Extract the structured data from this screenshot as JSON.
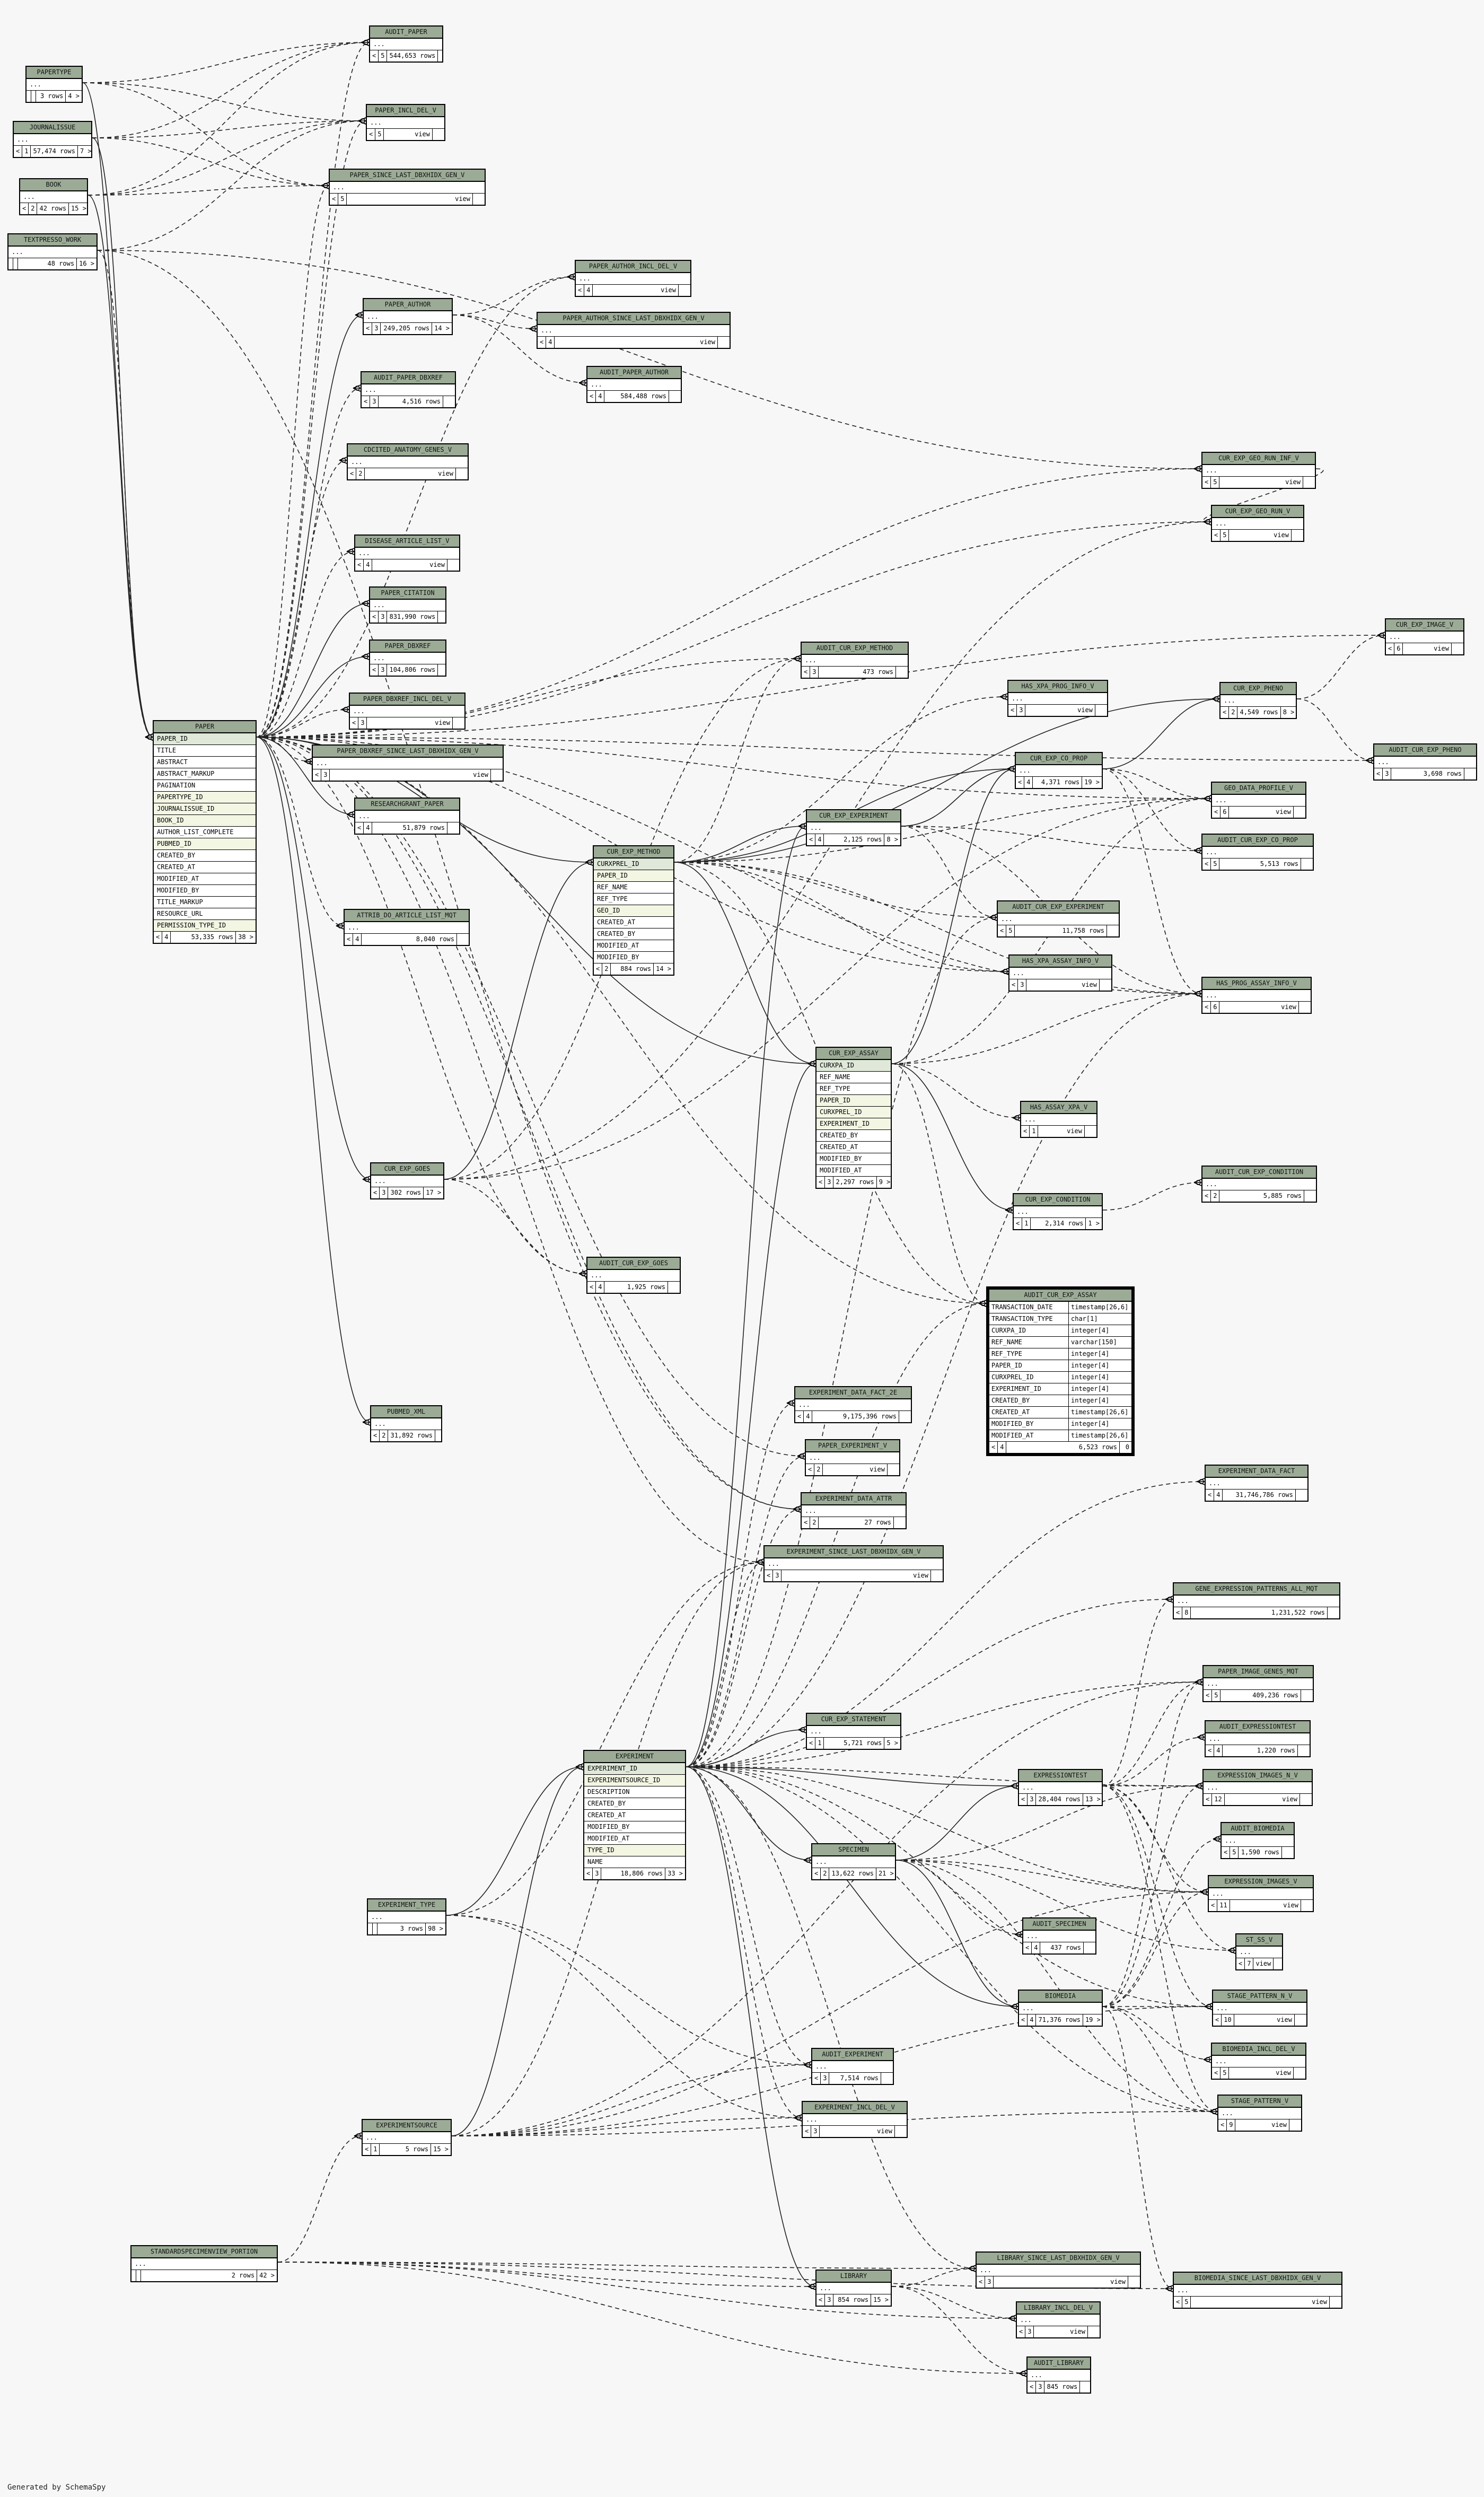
{
  "footer": "Generated by SchemaSpy",
  "tables": [
    {
      "name": "AUDIT_PAPER",
      "cols": [
        "..."
      ],
      "left": "<",
      "count": "5",
      "rows": "544,653 rows",
      "refs": ""
    },
    {
      "name": "PAPERTYPE",
      "cols": [
        "..."
      ],
      "left": "",
      "count": "",
      "rows": "3 rows",
      "refs": "4 >"
    },
    {
      "name": "PAPER_INCL_DEL_V",
      "cols": [
        "..."
      ],
      "left": "<",
      "count": "5",
      "rows": "view",
      "refs": ""
    },
    {
      "name": "JOURNALISSUE",
      "cols": [
        "..."
      ],
      "left": "<",
      "count": "1",
      "rows": "57,474 rows",
      "refs": "7 >"
    },
    {
      "name": "PAPER_SINCE_LAST_DBXHIDX_GEN_V",
      "cols": [
        "..."
      ],
      "left": "<",
      "count": "5",
      "rows": "view",
      "refs": ""
    },
    {
      "name": "BOOK",
      "cols": [
        "..."
      ],
      "left": "<",
      "count": "2",
      "rows": "42 rows",
      "refs": "15 >"
    },
    {
      "name": "TEXTPRESSO_WORK",
      "cols": [
        "..."
      ],
      "left": "",
      "count": "",
      "rows": "48 rows",
      "refs": "16 >"
    },
    {
      "name": "PAPER_AUTHOR_INCL_DEL_V",
      "cols": [
        "..."
      ],
      "left": "<",
      "count": "4",
      "rows": "view",
      "refs": ""
    },
    {
      "name": "PAPER_AUTHOR",
      "cols": [
        "..."
      ],
      "left": "<",
      "count": "3",
      "rows": "249,205 rows",
      "refs": "14 >"
    },
    {
      "name": "PAPER_AUTHOR_SINCE_LAST_DBXHIDX_GEN_V",
      "cols": [
        "..."
      ],
      "left": "<",
      "count": "4",
      "rows": "view",
      "refs": ""
    },
    {
      "name": "AUDIT_PAPER_AUTHOR",
      "cols": [
        "..."
      ],
      "left": "<",
      "count": "4",
      "rows": "584,488 rows",
      "refs": ""
    },
    {
      "name": "AUDIT_PAPER_DBXREF",
      "cols": [
        "..."
      ],
      "left": "<",
      "count": "3",
      "rows": "4,516 rows",
      "refs": ""
    },
    {
      "name": "CDCITED_ANATOMY_GENES_V",
      "cols": [
        "..."
      ],
      "left": "<",
      "count": "2",
      "rows": "view",
      "refs": ""
    },
    {
      "name": "CUR_EXP_GEO_RUN_INF_V",
      "cols": [
        "..."
      ],
      "left": "<",
      "count": "5",
      "rows": "view",
      "refs": ""
    },
    {
      "name": "CUR_EXP_GEO_RUN_V",
      "cols": [
        "..."
      ],
      "left": "<",
      "count": "5",
      "rows": "view",
      "refs": ""
    },
    {
      "name": "DISEASE_ARTICLE_LIST_V",
      "cols": [
        "..."
      ],
      "left": "<",
      "count": "4",
      "rows": "view",
      "refs": ""
    },
    {
      "name": "PAPER_CITATION",
      "cols": [
        "..."
      ],
      "left": "<",
      "count": "3",
      "rows": "831,990 rows",
      "refs": ""
    },
    {
      "name": "CUR_EXP_IMAGE_V",
      "cols": [
        "..."
      ],
      "left": "<",
      "count": "6",
      "rows": "view",
      "refs": ""
    },
    {
      "name": "PAPER_DBXREF",
      "cols": [
        "..."
      ],
      "left": "<",
      "count": "3",
      "rows": "104,806 rows",
      "refs": ""
    },
    {
      "name": "AUDIT_CUR_EXP_METHOD",
      "cols": [
        "..."
      ],
      "left": "<",
      "count": "3",
      "rows": "473 rows",
      "refs": ""
    },
    {
      "name": "HAS_XPA_PROG_INFO_V",
      "cols": [
        "..."
      ],
      "left": "<",
      "count": "3",
      "rows": "view",
      "refs": ""
    },
    {
      "name": "CUR_EXP_PHENO",
      "cols": [
        "..."
      ],
      "left": "<",
      "count": "2",
      "rows": "4,549 rows",
      "refs": "8 >"
    },
    {
      "name": "PAPER_DBXREF_INCL_DEL_V",
      "cols": [
        "..."
      ],
      "left": "<",
      "count": "3",
      "rows": "view",
      "refs": ""
    },
    {
      "name": "CUR_EXP_CO_PROP",
      "cols": [
        "..."
      ],
      "left": "<",
      "count": "4",
      "rows": "4,371 rows",
      "refs": "19 >"
    },
    {
      "name": "AUDIT_CUR_EXP_PHENO",
      "cols": [
        "..."
      ],
      "left": "<",
      "count": "3",
      "rows": "3,698 rows",
      "refs": ""
    },
    {
      "name": "PAPER",
      "cols": [
        "PAPER_ID",
        "TITLE",
        "ABSTRACT",
        "ABSTRACT_MARKUP",
        "PAGINATION",
        "PAPERTYPE_ID",
        "JOURNALISSUE_ID",
        "BOOK_ID",
        "AUTHOR_LIST_COMPLETE",
        "PUBMED_ID",
        "CREATED_BY",
        "CREATED_AT",
        "MODIFIED_AT",
        "MODIFIED_BY",
        "TITLE_MARKUP",
        "RESOURCE_URL",
        "PERMISSION_TYPE_ID"
      ],
      "left": "<",
      "count": "4",
      "rows": "53,335 rows",
      "refs": "38 >"
    },
    {
      "name": "PAPER_DBXREF_SINCE_LAST_DBXHIDX_GEN_V",
      "cols": [
        "..."
      ],
      "left": "<",
      "count": "3",
      "rows": "view",
      "refs": ""
    },
    {
      "name": "GEO_DATA_PROFILE_V",
      "cols": [
        "..."
      ],
      "left": "<",
      "count": "6",
      "rows": "view",
      "refs": ""
    },
    {
      "name": "RESEARCHGRANT_PAPER",
      "cols": [
        "..."
      ],
      "left": "<",
      "count": "4",
      "rows": "51,879 rows",
      "refs": ""
    },
    {
      "name": "CUR_EXP_EXPERIMENT",
      "cols": [
        "..."
      ],
      "left": "<",
      "count": "4",
      "rows": "2,125 rows",
      "refs": "8 >"
    },
    {
      "name": "AUDIT_CUR_EXP_CO_PROP",
      "cols": [
        "..."
      ],
      "left": "<",
      "count": "5",
      "rows": "5,513 rows",
      "refs": ""
    },
    {
      "name": "CUR_EXP_METHOD",
      "cols": [
        "CURXPREL_ID",
        "PAPER_ID",
        "REF_NAME",
        "REF_TYPE",
        "GEO_ID",
        "CREATED_AT",
        "CREATED_BY",
        "MODIFIED_AT",
        "MODIFIED_BY"
      ],
      "left": "<",
      "count": "2",
      "rows": "884 rows",
      "refs": "14 >"
    },
    {
      "name": "AUDIT_CUR_EXP_EXPERIMENT",
      "cols": [
        "..."
      ],
      "left": "<",
      "count": "5",
      "rows": "11,758 rows",
      "refs": ""
    },
    {
      "name": "ATTRIB_DO_ARTICLE_LIST_MQT",
      "cols": [
        "..."
      ],
      "left": "<",
      "count": "4",
      "rows": "8,040 rows",
      "refs": ""
    },
    {
      "name": "HAS_XPA_ASSAY_INFO_V",
      "cols": [
        "..."
      ],
      "left": "<",
      "count": "3",
      "rows": "view",
      "refs": ""
    },
    {
      "name": "HAS_PROG_ASSAY_INFO_V",
      "cols": [
        "..."
      ],
      "left": "<",
      "count": "6",
      "rows": "view",
      "refs": ""
    },
    {
      "name": "CUR_EXP_ASSAY",
      "cols": [
        "CURXPA_ID",
        "REF_NAME",
        "REF_TYPE",
        "PAPER_ID",
        "CURXPREL_ID",
        "EXPERIMENT_ID",
        "CREATED_BY",
        "CREATED_AT",
        "MODIFIED_BY",
        "MODIFIED_AT"
      ],
      "left": "<",
      "count": "3",
      "rows": "2,297 rows",
      "refs": "9 >"
    },
    {
      "name": "HAS_ASSAY_XPA_V",
      "cols": [
        "..."
      ],
      "left": "<",
      "count": "1",
      "rows": "view",
      "refs": ""
    },
    {
      "name": "CUR_EXP_GOES",
      "cols": [
        "..."
      ],
      "left": "<",
      "count": "3",
      "rows": "302 rows",
      "refs": "17 >"
    },
    {
      "name": "AUDIT_CUR_EXP_CONDITION",
      "cols": [
        "..."
      ],
      "left": "<",
      "count": "2",
      "rows": "5,885 rows",
      "refs": ""
    },
    {
      "name": "CUR_EXP_CONDITION",
      "cols": [
        "..."
      ],
      "left": "<",
      "count": "1",
      "rows": "2,314 rows",
      "refs": "1 >"
    },
    {
      "name": "AUDIT_CUR_EXP_GOES",
      "cols": [
        "..."
      ],
      "left": "<",
      "count": "4",
      "rows": "1,925 rows",
      "refs": ""
    },
    {
      "name": "EXPERIMENT_DATA_FACT_2E",
      "cols": [
        "..."
      ],
      "left": "<",
      "count": "4",
      "rows": "9,175,396 rows",
      "refs": ""
    },
    {
      "name": "PUBMED_XML",
      "cols": [
        "..."
      ],
      "left": "<",
      "count": "2",
      "rows": "31,892 rows",
      "refs": ""
    },
    {
      "name": "PAPER_EXPERIMENT_V",
      "cols": [
        "..."
      ],
      "left": "<",
      "count": "2",
      "rows": "view",
      "refs": ""
    },
    {
      "name": "EXPERIMENT_DATA_FACT",
      "cols": [
        "..."
      ],
      "left": "<",
      "count": "4",
      "rows": "31,746,786 rows",
      "refs": ""
    },
    {
      "name": "EXPERIMENT_DATA_ATTR",
      "cols": [
        "..."
      ],
      "left": "<",
      "count": "2",
      "rows": "27 rows",
      "refs": ""
    },
    {
      "name": "EXPERIMENT_SINCE_LAST_DBXHIDX_GEN_V",
      "cols": [
        "..."
      ],
      "left": "<",
      "count": "3",
      "rows": "view",
      "refs": ""
    },
    {
      "name": "GENE_EXPRESSION_PATTERNS_ALL_MQT",
      "cols": [
        "..."
      ],
      "left": "<",
      "count": "8",
      "rows": "1,231,522 rows",
      "refs": ""
    },
    {
      "name": "PAPER_IMAGE_GENES_MQT",
      "cols": [
        "..."
      ],
      "left": "<",
      "count": "5",
      "rows": "409,236 rows",
      "refs": ""
    },
    {
      "name": "CUR_EXP_STATEMENT",
      "cols": [
        "..."
      ],
      "left": "<",
      "count": "1",
      "rows": "5,721 rows",
      "refs": "5 >"
    },
    {
      "name": "AUDIT_EXPRESSIONTEST",
      "cols": [
        "..."
      ],
      "left": "<",
      "count": "4",
      "rows": "1,220 rows",
      "refs": ""
    },
    {
      "name": "EXPERIMENT",
      "cols": [
        "EXPERIMENT_ID",
        "EXPERIMENTSOURCE_ID",
        "DESCRIPTION",
        "CREATED_BY",
        "CREATED_AT",
        "MODIFIED_BY",
        "MODIFIED_AT",
        "TYPE_ID",
        "NAME"
      ],
      "left": "<",
      "count": "3",
      "rows": "18,806 rows",
      "refs": "33 >"
    },
    {
      "name": "EXPRESSIONTEST",
      "cols": [
        "..."
      ],
      "left": "<",
      "count": "3",
      "rows": "28,404 rows",
      "refs": "13 >"
    },
    {
      "name": "EXPRESSION_IMAGES_N_V",
      "cols": [
        "..."
      ],
      "left": "<",
      "count": "12",
      "rows": "view",
      "refs": ""
    },
    {
      "name": "AUDIT_BIOMEDIA",
      "cols": [
        "..."
      ],
      "left": "<",
      "count": "5",
      "rows": "1,590 rows",
      "refs": ""
    },
    {
      "name": "SPECIMEN",
      "cols": [
        "..."
      ],
      "left": "<",
      "count": "2",
      "rows": "13,622 rows",
      "refs": "21 >"
    },
    {
      "name": "EXPRESSION_IMAGES_V",
      "cols": [
        "..."
      ],
      "left": "<",
      "count": "11",
      "rows": "view",
      "refs": ""
    },
    {
      "name": "EXPERIMENT_TYPE",
      "cols": [
        "..."
      ],
      "left": "",
      "count": "",
      "rows": "3 rows",
      "refs": "98 >"
    },
    {
      "name": "AUDIT_SPECIMEN",
      "cols": [
        "..."
      ],
      "left": "<",
      "count": "4",
      "rows": "437 rows",
      "refs": ""
    },
    {
      "name": "ST_SS_V",
      "cols": [
        "..."
      ],
      "left": "<",
      "count": "7",
      "rows": "view",
      "refs": ""
    },
    {
      "name": "BIOMEDIA",
      "cols": [
        "..."
      ],
      "left": "<",
      "count": "4",
      "rows": "71,376 rows",
      "refs": "19 >"
    },
    {
      "name": "STAGE_PATTERN_N_V",
      "cols": [
        "..."
      ],
      "left": "<",
      "count": "10",
      "rows": "view",
      "refs": ""
    },
    {
      "name": "BIOMEDIA_INCL_DEL_V",
      "cols": [
        "..."
      ],
      "left": "<",
      "count": "5",
      "rows": "view",
      "refs": ""
    },
    {
      "name": "AUDIT_EXPERIMENT",
      "cols": [
        "..."
      ],
      "left": "<",
      "count": "3",
      "rows": "7,514 rows",
      "refs": ""
    },
    {
      "name": "STAGE_PATTERN_V",
      "cols": [
        "..."
      ],
      "left": "<",
      "count": "9",
      "rows": "view",
      "refs": ""
    },
    {
      "name": "EXPERIMENT_INCL_DEL_V",
      "cols": [
        "..."
      ],
      "left": "<",
      "count": "3",
      "rows": "view",
      "refs": ""
    },
    {
      "name": "EXPERIMENTSOURCE",
      "cols": [
        "..."
      ],
      "left": "<",
      "count": "1",
      "rows": "5 rows",
      "refs": "15 >"
    },
    {
      "name": "STANDARDSPECIMENVIEW_PORTION",
      "cols": [
        "..."
      ],
      "left": "",
      "count": "",
      "rows": "2 rows",
      "refs": "42 >"
    },
    {
      "name": "LIBRARY_SINCE_LAST_DBXHIDX_GEN_V",
      "cols": [
        "..."
      ],
      "left": "<",
      "count": "3",
      "rows": "view",
      "refs": ""
    },
    {
      "name": "BIOMEDIA_SINCE_LAST_DBXHIDX_GEN_V",
      "cols": [
        "..."
      ],
      "left": "<",
      "count": "5",
      "rows": "view",
      "refs": ""
    },
    {
      "name": "LIBRARY",
      "cols": [
        "..."
      ],
      "left": "<",
      "count": "3",
      "rows": "854 rows",
      "refs": "15 >"
    },
    {
      "name": "LIBRARY_INCL_DEL_V",
      "cols": [
        "..."
      ],
      "left": "<",
      "count": "3",
      "rows": "view",
      "refs": ""
    },
    {
      "name": "AUDIT_LIBRARY",
      "cols": [
        "..."
      ],
      "left": "<",
      "count": "3",
      "rows": "845 rows",
      "refs": ""
    }
  ],
  "focus_table": {
    "name": "AUDIT_CUR_EXP_ASSAY",
    "columns": [
      {
        "name": "TRANSACTION_DATE",
        "type": "timestamp[26,6]"
      },
      {
        "name": "TRANSACTION_TYPE",
        "type": "char[1]"
      },
      {
        "name": "CURXPA_ID",
        "type": "integer[4]"
      },
      {
        "name": "REF_NAME",
        "type": "varchar[150]"
      },
      {
        "name": "REF_TYPE",
        "type": "integer[4]"
      },
      {
        "name": "PAPER_ID",
        "type": "integer[4]"
      },
      {
        "name": "CURXPREL_ID",
        "type": "integer[4]"
      },
      {
        "name": "EXPERIMENT_ID",
        "type": "integer[4]"
      },
      {
        "name": "CREATED_BY",
        "type": "integer[4]"
      },
      {
        "name": "CREATED_AT",
        "type": "timestamp[26,6]"
      },
      {
        "name": "MODIFIED_BY",
        "type": "integer[4]"
      },
      {
        "name": "MODIFIED_AT",
        "type": "timestamp[26,6]"
      }
    ],
    "left": "<",
    "count": "4",
    "rows": "6,523 rows",
    "refs": "0"
  }
}
